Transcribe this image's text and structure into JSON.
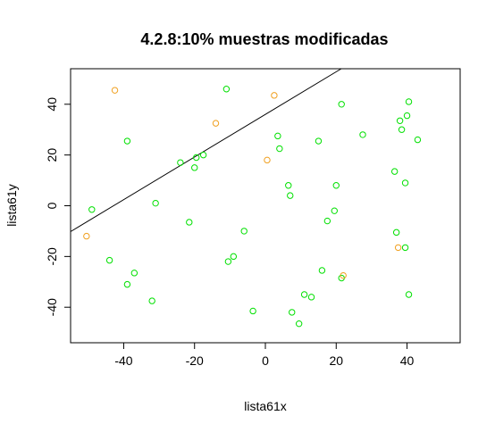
{
  "chart_data": {
    "type": "scatter",
    "title": "4.2.8:10% muestras modificadas",
    "xlabel": "lista61x",
    "ylabel": "lista61y",
    "xlim": [
      -55,
      55
    ],
    "ylim": [
      -54,
      54
    ],
    "xticks": [
      -40,
      -20,
      0,
      20,
      40
    ],
    "yticks": [
      -40,
      -20,
      0,
      20,
      40
    ],
    "grid": false,
    "colors": {
      "normal": "#00e000",
      "modified": "#f0a020",
      "line": "#000000",
      "frame": "#000000"
    },
    "line": {
      "intercept": 36,
      "slope": 0.84
    },
    "series": [
      {
        "color_key": "normal",
        "points": [
          [
            -49,
            -1.5
          ],
          [
            -44,
            -21.5
          ],
          [
            -39,
            25.5
          ],
          [
            -39,
            -31
          ],
          [
            -37,
            -26.5
          ],
          [
            -32,
            -37.5
          ],
          [
            -31,
            1
          ],
          [
            -24,
            17
          ],
          [
            -21.5,
            -6.5
          ],
          [
            -20,
            15
          ],
          [
            -19.5,
            19
          ],
          [
            -17.5,
            20
          ],
          [
            -11,
            46
          ],
          [
            -10.5,
            -22
          ],
          [
            -9,
            -20
          ],
          [
            -6,
            -10
          ],
          [
            -3.5,
            -41.5
          ],
          [
            3.5,
            27.5
          ],
          [
            4,
            22.5
          ],
          [
            6.5,
            8
          ],
          [
            7,
            4
          ],
          [
            7.5,
            -42
          ],
          [
            9.5,
            -46.5
          ],
          [
            11,
            -35
          ],
          [
            13,
            -36
          ],
          [
            15,
            25.5
          ],
          [
            16,
            -25.5
          ],
          [
            17.5,
            -6
          ],
          [
            19.5,
            -2
          ],
          [
            20,
            8
          ],
          [
            21.5,
            40
          ],
          [
            21.5,
            -28.5
          ],
          [
            27.5,
            28
          ],
          [
            36.5,
            13.5
          ],
          [
            37,
            -10.5
          ],
          [
            38,
            33.5
          ],
          [
            38.5,
            30
          ],
          [
            39.5,
            9
          ],
          [
            39.5,
            -16.5
          ],
          [
            40,
            35.5
          ],
          [
            40.5,
            41
          ],
          [
            40.5,
            -35
          ],
          [
            43,
            26
          ]
        ]
      },
      {
        "color_key": "modified",
        "points": [
          [
            -50.5,
            -12
          ],
          [
            -42.5,
            45.5
          ],
          [
            -14,
            32.5
          ],
          [
            0.5,
            18
          ],
          [
            2.5,
            43.5
          ],
          [
            22,
            -27.5
          ],
          [
            37.5,
            -16.5
          ]
        ]
      }
    ]
  }
}
